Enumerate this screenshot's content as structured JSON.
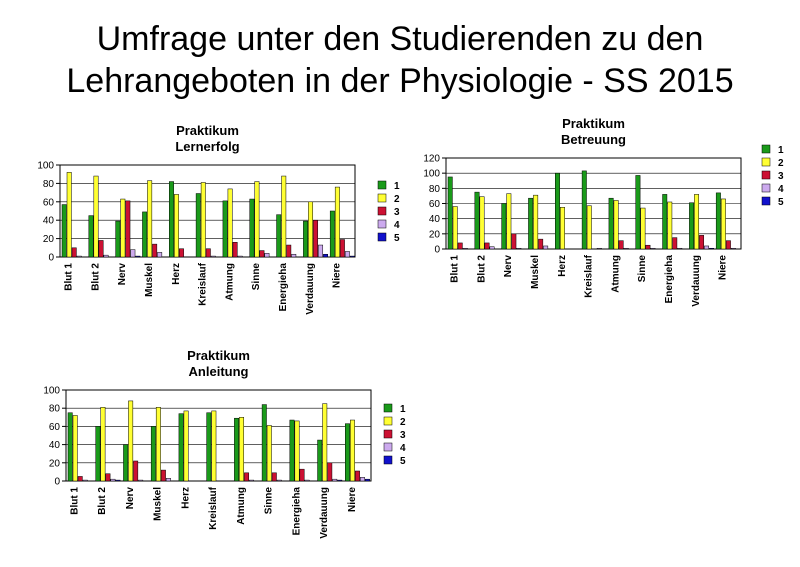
{
  "title_line1": "Umfrage unter den Studierenden zu den",
  "title_line2": "Lehrangeboten in der Physiologie - SS 2015",
  "colors": [
    "#1a9a1a",
    "#ffff33",
    "#cc1133",
    "#ccaaee",
    "#1111cc"
  ],
  "chart_data": [
    {
      "type": "bar",
      "title": "Praktikum",
      "subtitle": "Lernerfolg",
      "categories": [
        "Blut 1",
        "Blut 2",
        "Nerv",
        "Muskel",
        "Herz",
        "Kreislauf",
        "Atmung",
        "Sinne",
        "Energieha",
        "Verdauung",
        "Niere"
      ],
      "ylim": [
        0,
        100
      ],
      "yticks": [
        0,
        20,
        40,
        60,
        80,
        100
      ],
      "series": [
        {
          "name": "1",
          "values": [
            57,
            45,
            39,
            49,
            82,
            69,
            61,
            63,
            46,
            39,
            50
          ]
        },
        {
          "name": "2",
          "values": [
            92,
            88,
            63,
            83,
            68,
            81,
            74,
            82,
            88,
            60,
            76
          ]
        },
        {
          "name": "3",
          "values": [
            10,
            18,
            61,
            14,
            9,
            9,
            16,
            7,
            13,
            40,
            19
          ]
        },
        {
          "name": "4",
          "values": [
            1,
            2,
            8,
            5,
            0,
            1,
            1,
            4,
            3,
            13,
            6
          ]
        },
        {
          "name": "5",
          "values": [
            0,
            0,
            1,
            0,
            0,
            0,
            0,
            0,
            0,
            3,
            1
          ]
        }
      ]
    },
    {
      "type": "bar",
      "title": "Praktikum",
      "subtitle": "Betreuung",
      "categories": [
        "Blut 1",
        "Blut 2",
        "Nerv",
        "Muskel",
        "Herz",
        "Kreislauf",
        "Atmung",
        "Sinne",
        "Energieha",
        "Verdauung",
        "Niere"
      ],
      "ylim": [
        0,
        120
      ],
      "yticks": [
        0,
        20,
        40,
        60,
        80,
        100,
        120
      ],
      "series": [
        {
          "name": "1",
          "values": [
            95,
            75,
            60,
            67,
            100,
            103,
            67,
            97,
            72,
            61,
            74
          ]
        },
        {
          "name": "2",
          "values": [
            56,
            69,
            73,
            71,
            55,
            57,
            64,
            54,
            62,
            72,
            66
          ]
        },
        {
          "name": "3",
          "values": [
            8,
            8,
            20,
            13,
            0,
            0,
            11,
            5,
            15,
            18,
            11
          ]
        },
        {
          "name": "4",
          "values": [
            1,
            3,
            1,
            4,
            0,
            1,
            1,
            1,
            1,
            4,
            1
          ]
        },
        {
          "name": "5",
          "values": [
            0,
            0,
            0,
            0,
            0,
            0,
            0,
            0,
            0,
            1,
            0
          ]
        }
      ]
    },
    {
      "type": "bar",
      "title": "Praktikum",
      "subtitle": "Anleitung",
      "categories": [
        "Blut 1",
        "Blut 2",
        "Nerv",
        "Muskel",
        "Herz",
        "Kreislauf",
        "Atmung",
        "Sinne",
        "Energieha",
        "Verdauung",
        "Niere"
      ],
      "ylim": [
        0,
        100
      ],
      "yticks": [
        0,
        20,
        40,
        60,
        80,
        100
      ],
      "series": [
        {
          "name": "1",
          "values": [
            75,
            60,
            40,
            60,
            74,
            75,
            69,
            84,
            67,
            45,
            63
          ]
        },
        {
          "name": "2",
          "values": [
            72,
            81,
            88,
            81,
            77,
            77,
            70,
            61,
            66,
            85,
            67
          ]
        },
        {
          "name": "3",
          "values": [
            5,
            8,
            22,
            12,
            0,
            0,
            9,
            9,
            13,
            20,
            11
          ]
        },
        {
          "name": "4",
          "values": [
            1,
            2,
            1,
            3,
            0,
            0,
            1,
            1,
            1,
            2,
            4
          ]
        },
        {
          "name": "5",
          "values": [
            0,
            1,
            0,
            0,
            0,
            0,
            0,
            0,
            0,
            1,
            2
          ]
        }
      ]
    }
  ]
}
